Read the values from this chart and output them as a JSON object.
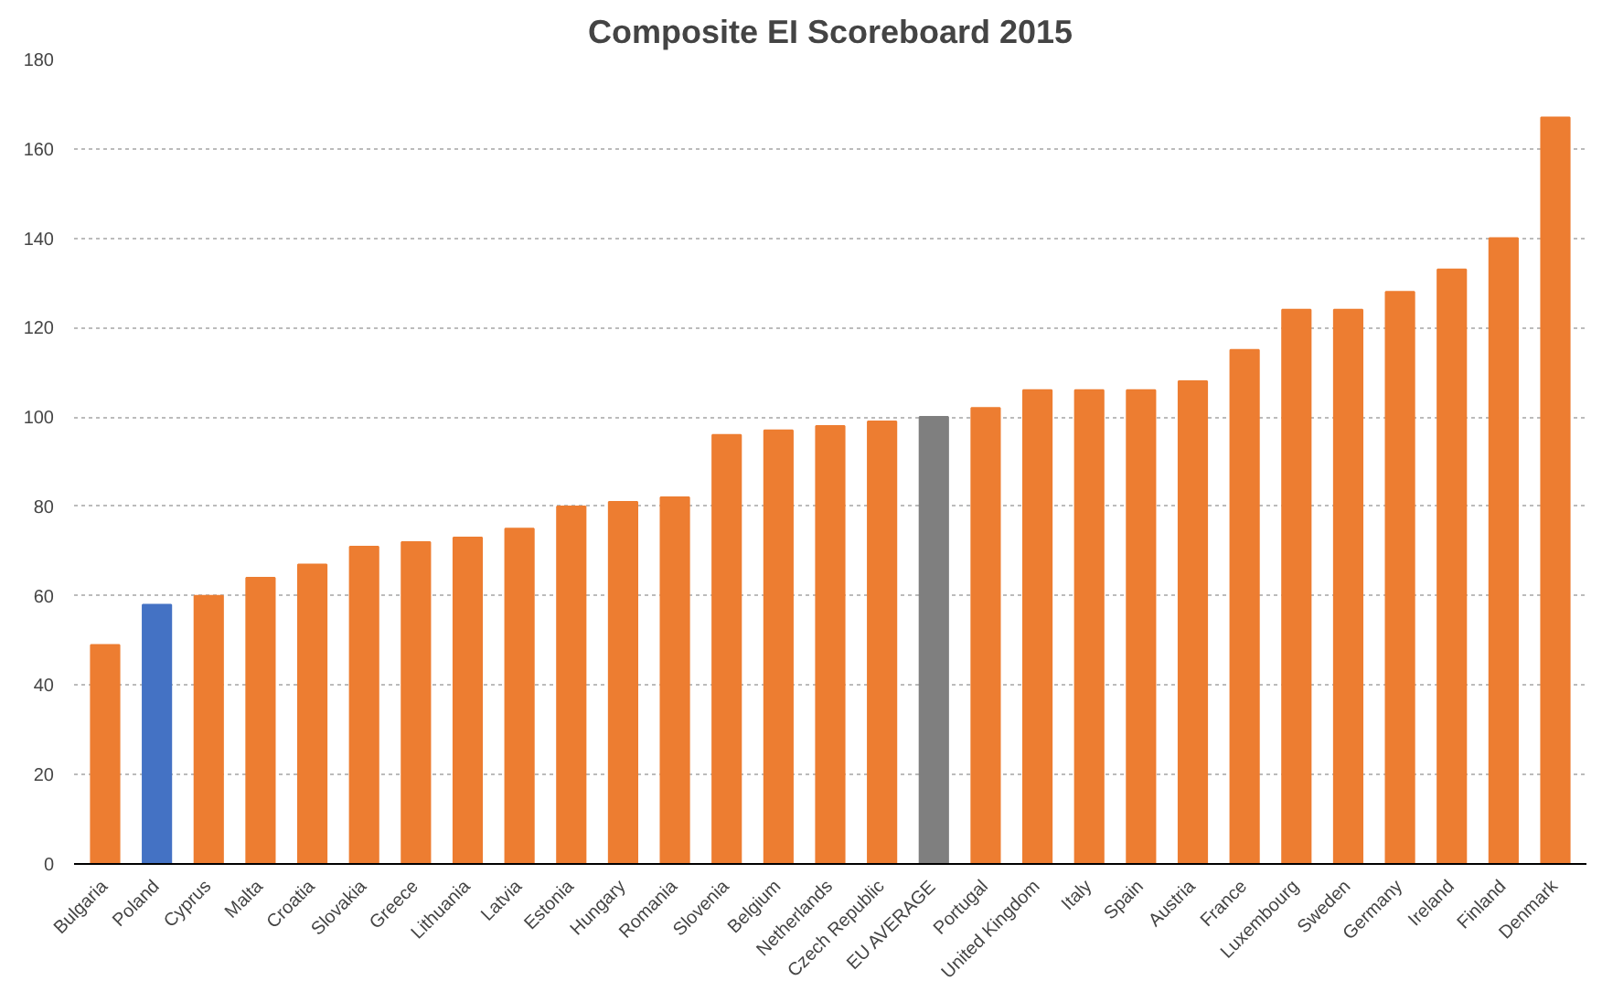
{
  "chart_data": {
    "type": "bar",
    "title": "Composite EI Scoreboard 2015",
    "categories": [
      "Bulgaria",
      "Poland",
      "Cyprus",
      "Malta",
      "Croatia",
      "Slovakia",
      "Greece",
      "Lithuania",
      "Latvia",
      "Estonia",
      "Hungary",
      "Romania",
      "Slovenia",
      "Belgium",
      "Netherlands",
      "Czech Republic",
      "EU AVERAGE",
      "Portugal",
      "United Kingdom",
      "Italy",
      "Spain",
      "Austria",
      "France",
      "Luxembourg",
      "Sweden",
      "Germany",
      "Ireland",
      "Finland",
      "Denmark"
    ],
    "values": [
      49,
      58,
      60,
      64,
      67,
      71,
      72,
      73,
      75,
      80,
      81,
      82,
      96,
      97,
      98,
      99,
      100,
      102,
      106,
      106,
      106,
      108,
      115,
      124,
      124,
      128,
      133,
      140,
      167
    ],
    "colors": [
      "#ed7d31",
      "#4472c4",
      "#ed7d31",
      "#ed7d31",
      "#ed7d31",
      "#ed7d31",
      "#ed7d31",
      "#ed7d31",
      "#ed7d31",
      "#ed7d31",
      "#ed7d31",
      "#ed7d31",
      "#ed7d31",
      "#ed7d31",
      "#ed7d31",
      "#ed7d31",
      "#7f7f7f",
      "#ed7d31",
      "#ed7d31",
      "#ed7d31",
      "#ed7d31",
      "#ed7d31",
      "#ed7d31",
      "#ed7d31",
      "#ed7d31",
      "#ed7d31",
      "#ed7d31",
      "#ed7d31",
      "#ed7d31"
    ],
    "ylim": [
      0,
      180
    ],
    "yticks": [
      0,
      20,
      40,
      60,
      80,
      100,
      120,
      140,
      160,
      180
    ],
    "grid": "y"
  }
}
